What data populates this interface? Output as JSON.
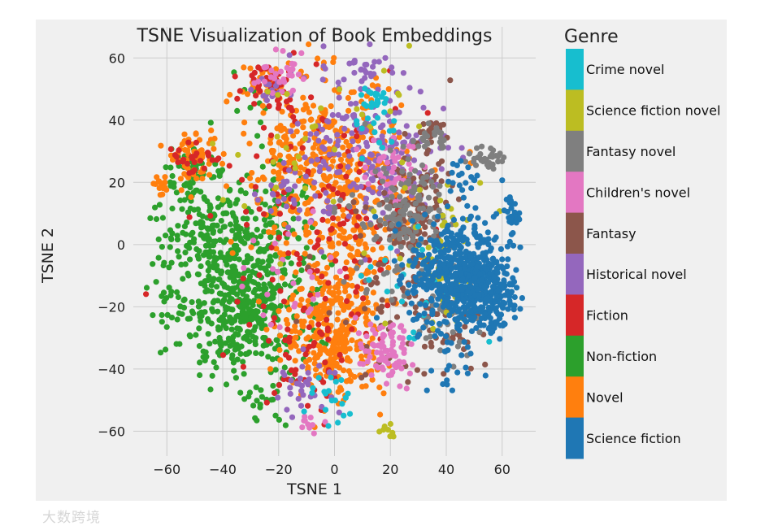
{
  "chart_data": {
    "type": "scatter",
    "title": "TSNE Visualization of Book Embeddings",
    "xlabel": "TSNE 1",
    "ylabel": "TSNE 2",
    "xlim": [
      -72,
      72
    ],
    "ylim": [
      -68,
      70
    ],
    "xticks": [
      -60,
      -40,
      -20,
      0,
      20,
      40,
      60
    ],
    "yticks": [
      -60,
      -40,
      -20,
      0,
      20,
      40,
      60
    ],
    "grid": true,
    "legend": {
      "title": "Genre",
      "placement": "right",
      "entries": [
        {
          "name": "Crime novel",
          "color": "#17becf"
        },
        {
          "name": "Science fiction novel",
          "color": "#bcbd22"
        },
        {
          "name": "Fantasy novel",
          "color": "#7f7f7f"
        },
        {
          "name": "Children's novel",
          "color": "#e377c2"
        },
        {
          "name": "Fantasy",
          "color": "#8c564b"
        },
        {
          "name": "Historical novel",
          "color": "#9467bd"
        },
        {
          "name": "Fiction",
          "color": "#d62728"
        },
        {
          "name": "Non-fiction",
          "color": "#2ca02c"
        },
        {
          "name": "Novel",
          "color": "#ff7f0e"
        },
        {
          "name": "Science fiction",
          "color": "#1f77b4"
        }
      ]
    },
    "series": [
      {
        "name": "Non-fiction",
        "color": "#2ca02c",
        "clusters": [
          {
            "center": [
              -33,
              -18
            ],
            "spread": [
              11,
              12
            ],
            "count": 480
          },
          {
            "center": [
              -45,
              5
            ],
            "spread": [
              9,
              9
            ],
            "count": 180
          },
          {
            "center": [
              -20,
              8
            ],
            "spread": [
              6,
              9
            ],
            "count": 60
          },
          {
            "center": [
              -50,
              24
            ],
            "spread": [
              4,
              3
            ],
            "count": 40
          },
          {
            "center": [
              -25,
              -50
            ],
            "spread": [
              4,
              4
            ],
            "count": 20
          },
          {
            "center": [
              -60,
              -20
            ],
            "spread": [
              3,
              8
            ],
            "count": 20
          },
          {
            "center": [
              -30,
              48
            ],
            "spread": [
              6,
              5
            ],
            "count": 12
          }
        ]
      },
      {
        "name": "Novel",
        "color": "#ff7f0e",
        "clusters": [
          {
            "center": [
              0,
              -28
            ],
            "spread": [
              9,
              11
            ],
            "count": 320
          },
          {
            "center": [
              -5,
              25
            ],
            "spread": [
              15,
              14
            ],
            "count": 380
          },
          {
            "center": [
              10,
              10
            ],
            "spread": [
              9,
              16
            ],
            "count": 120
          },
          {
            "center": [
              -50,
              27
            ],
            "spread": [
              4,
              4
            ],
            "count": 60
          },
          {
            "center": [
              -62,
              18
            ],
            "spread": [
              1.5,
              1.5
            ],
            "count": 15
          },
          {
            "center": [
              -25,
              52
            ],
            "spread": [
              4,
              3
            ],
            "count": 30
          }
        ]
      },
      {
        "name": "Fiction",
        "color": "#d62728",
        "clusters": [
          {
            "center": [
              -5,
              5
            ],
            "spread": [
              20,
              22
            ],
            "count": 160
          },
          {
            "center": [
              -22,
              52
            ],
            "spread": [
              5,
              4
            ],
            "count": 40
          },
          {
            "center": [
              -52,
              28
            ],
            "spread": [
              4,
              3
            ],
            "count": 25
          },
          {
            "center": [
              -10,
              -40
            ],
            "spread": [
              8,
              8
            ],
            "count": 30
          }
        ]
      },
      {
        "name": "Historical novel",
        "color": "#9467bd",
        "clusters": [
          {
            "center": [
              15,
              28
            ],
            "spread": [
              12,
              12
            ],
            "count": 180
          },
          {
            "center": [
              -15,
              20
            ],
            "spread": [
              7,
              8
            ],
            "count": 40
          },
          {
            "center": [
              -10,
              -45
            ],
            "spread": [
              6,
              5
            ],
            "count": 30
          },
          {
            "center": [
              10,
              55
            ],
            "spread": [
              6,
              4
            ],
            "count": 30
          },
          {
            "center": [
              -22,
              50
            ],
            "spread": [
              4,
              4
            ],
            "count": 20
          }
        ]
      },
      {
        "name": "Fantasy",
        "color": "#8c564b",
        "clusters": [
          {
            "center": [
              28,
              10
            ],
            "spread": [
              7,
              10
            ],
            "count": 140
          },
          {
            "center": [
              40,
              -25
            ],
            "spread": [
              6,
              6
            ],
            "count": 40
          },
          {
            "center": [
              35,
              35
            ],
            "spread": [
              4,
              3
            ],
            "count": 25
          },
          {
            "center": [
              20,
              -20
            ],
            "spread": [
              12,
              12
            ],
            "count": 60
          }
        ]
      },
      {
        "name": "Children's novel",
        "color": "#e377c2",
        "clusters": [
          {
            "center": [
              18,
              -35
            ],
            "spread": [
              5,
              5
            ],
            "count": 80
          },
          {
            "center": [
              20,
              25
            ],
            "spread": [
              5,
              5
            ],
            "count": 40
          },
          {
            "center": [
              -20,
              55
            ],
            "spread": [
              4,
              3
            ],
            "count": 30
          },
          {
            "center": [
              -10,
              -58
            ],
            "spread": [
              3,
              2
            ],
            "count": 10
          },
          {
            "center": [
              -15,
              -10
            ],
            "spread": [
              8,
              10
            ],
            "count": 25
          }
        ]
      },
      {
        "name": "Fantasy novel",
        "color": "#7f7f7f",
        "clusters": [
          {
            "center": [
              27,
              12
            ],
            "spread": [
              6,
              8
            ],
            "count": 110
          },
          {
            "center": [
              55,
              28
            ],
            "spread": [
              3,
              2
            ],
            "count": 30
          },
          {
            "center": [
              34,
              34
            ],
            "spread": [
              3,
              2
            ],
            "count": 20
          },
          {
            "center": [
              40,
              -22
            ],
            "spread": [
              6,
              8
            ],
            "count": 40
          },
          {
            "center": [
              20,
              5
            ],
            "spread": [
              12,
              15
            ],
            "count": 30
          }
        ]
      },
      {
        "name": "Science fiction novel",
        "color": "#bcbd22",
        "clusters": [
          {
            "center": [
              40,
              -5
            ],
            "spread": [
              10,
              12
            ],
            "count": 60
          },
          {
            "center": [
              18,
              -60
            ],
            "spread": [
              2,
              1.5
            ],
            "count": 8
          },
          {
            "center": [
              -15,
              30
            ],
            "spread": [
              15,
              15
            ],
            "count": 25
          },
          {
            "center": [
              20,
              45
            ],
            "spread": [
              8,
              8
            ],
            "count": 10
          }
        ]
      },
      {
        "name": "Crime novel",
        "color": "#17becf",
        "clusters": [
          {
            "center": [
              15,
              47
            ],
            "spread": [
              2.5,
              2
            ],
            "count": 20
          },
          {
            "center": [
              15,
              35
            ],
            "spread": [
              4,
              4
            ],
            "count": 15
          },
          {
            "center": [
              0,
              -50
            ],
            "spread": [
              5,
              4
            ],
            "count": 20
          },
          {
            "center": [
              25,
              -15
            ],
            "spread": [
              10,
              12
            ],
            "count": 20
          }
        ]
      },
      {
        "name": "Science fiction",
        "color": "#1f77b4",
        "clusters": [
          {
            "center": [
              45,
              -10
            ],
            "spread": [
              9,
              9
            ],
            "count": 520
          },
          {
            "center": [
              54,
              -17
            ],
            "spread": [
              5,
              6
            ],
            "count": 160
          },
          {
            "center": [
              63,
              10
            ],
            "spread": [
              1.5,
              3
            ],
            "count": 30
          },
          {
            "center": [
              47,
              20
            ],
            "spread": [
              3,
              3
            ],
            "count": 20
          },
          {
            "center": [
              40,
              -40
            ],
            "spread": [
              5,
              5
            ],
            "count": 15
          }
        ]
      }
    ]
  },
  "watermark": {
    "text": "大数跨境"
  }
}
